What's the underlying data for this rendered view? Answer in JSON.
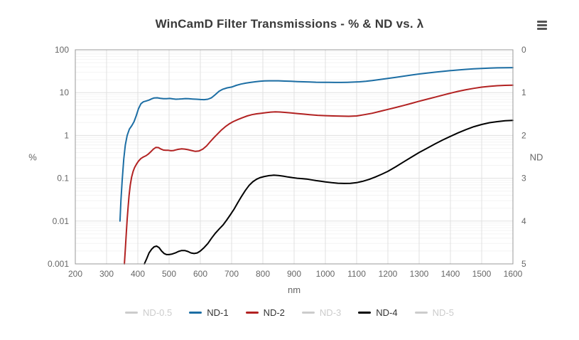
{
  "chart": {
    "title": "WinCamD Filter Transmissions - % & ND vs. λ",
    "menu_icon": "hamburger-menu"
  },
  "colors": {
    "background": "#ffffff",
    "title_text": "#3a3a3a",
    "axis_text": "#666666",
    "plot_border": "#999999",
    "grid_major": "#e0e0e0",
    "grid_minor": "#f4f4f4",
    "legend_enabled_text": "#333333",
    "legend_disabled": "#cccccc",
    "nd1_blue": "#1c6ea4",
    "nd2_red": "#b22222",
    "nd4_black": "#000000"
  },
  "axes": {
    "x": {
      "title": "nm",
      "min": 200,
      "max": 1600,
      "tick_values": [
        200,
        300,
        400,
        500,
        600,
        700,
        800,
        900,
        1000,
        1100,
        1200,
        1300,
        1400,
        1500,
        1600
      ]
    },
    "y_left": {
      "title": "%",
      "type": "log",
      "min": 0.001,
      "max": 100,
      "ticks": [
        {
          "v": 100,
          "label": "100"
        },
        {
          "v": 10,
          "label": "10"
        },
        {
          "v": 1,
          "label": "1"
        },
        {
          "v": 0.1,
          "label": "0.1"
        },
        {
          "v": 0.01,
          "label": "0.01"
        },
        {
          "v": 0.001,
          "label": "0.001"
        }
      ]
    },
    "y_right": {
      "title": "ND",
      "ticks": [
        0,
        1,
        2,
        3,
        4,
        5
      ]
    }
  },
  "chart_data": {
    "type": "line",
    "title": "WinCamD Filter Transmissions - % & ND vs. λ",
    "xlabel": "nm",
    "ylabel_left": "%",
    "ylabel_right": "ND",
    "x_range": [
      200,
      1600
    ],
    "y_range": [
      0.001,
      100
    ],
    "nd_range": [
      0,
      5
    ],
    "grid": true,
    "legend_position": "bottom",
    "series": [
      {
        "name": "ND-0.5",
        "color": "#cccccc",
        "visible": false,
        "points": []
      },
      {
        "name": "ND-1",
        "color": "#1c6ea4",
        "visible": true,
        "points": [
          [
            343,
            0.01
          ],
          [
            346,
            0.03
          ],
          [
            350,
            0.09
          ],
          [
            355,
            0.28
          ],
          [
            360,
            0.6
          ],
          [
            366,
            1.0
          ],
          [
            373,
            1.4
          ],
          [
            381,
            1.7
          ],
          [
            388,
            2.1
          ],
          [
            395,
            2.9
          ],
          [
            402,
            4.2
          ],
          [
            410,
            5.5
          ],
          [
            418,
            6.1
          ],
          [
            427,
            6.4
          ],
          [
            436,
            6.7
          ],
          [
            445,
            7.2
          ],
          [
            452,
            7.5
          ],
          [
            462,
            7.55
          ],
          [
            472,
            7.35
          ],
          [
            482,
            7.2
          ],
          [
            492,
            7.2
          ],
          [
            502,
            7.3
          ],
          [
            512,
            7.15
          ],
          [
            522,
            7.0
          ],
          [
            532,
            7.05
          ],
          [
            542,
            7.15
          ],
          [
            552,
            7.25
          ],
          [
            562,
            7.2
          ],
          [
            575,
            7.1
          ],
          [
            588,
            7.0
          ],
          [
            600,
            6.9
          ],
          [
            612,
            6.85
          ],
          [
            624,
            7.0
          ],
          [
            636,
            7.6
          ],
          [
            648,
            9.0
          ],
          [
            660,
            10.8
          ],
          [
            672,
            12.0
          ],
          [
            686,
            12.9
          ],
          [
            700,
            13.5
          ],
          [
            715,
            14.8
          ],
          [
            730,
            15.8
          ],
          [
            745,
            16.6
          ],
          [
            760,
            17.3
          ],
          [
            775,
            17.9
          ],
          [
            790,
            18.4
          ],
          [
            805,
            18.7
          ],
          [
            820,
            18.85
          ],
          [
            835,
            18.9
          ],
          [
            850,
            18.85
          ],
          [
            870,
            18.6
          ],
          [
            890,
            18.4
          ],
          [
            910,
            18.1
          ],
          [
            930,
            17.9
          ],
          [
            950,
            17.7
          ],
          [
            970,
            17.5
          ],
          [
            990,
            17.4
          ],
          [
            1010,
            17.35
          ],
          [
            1030,
            17.3
          ],
          [
            1050,
            17.3
          ],
          [
            1070,
            17.4
          ],
          [
            1090,
            17.6
          ],
          [
            1110,
            17.9
          ],
          [
            1130,
            18.4
          ],
          [
            1150,
            19.1
          ],
          [
            1175,
            20.2
          ],
          [
            1200,
            21.5
          ],
          [
            1225,
            22.8
          ],
          [
            1250,
            24.2
          ],
          [
            1275,
            25.7
          ],
          [
            1300,
            27.2
          ],
          [
            1325,
            28.6
          ],
          [
            1350,
            30.0
          ],
          [
            1375,
            31.3
          ],
          [
            1400,
            32.6
          ],
          [
            1425,
            33.8
          ],
          [
            1450,
            34.9
          ],
          [
            1475,
            35.9
          ],
          [
            1500,
            36.7
          ],
          [
            1525,
            37.3
          ],
          [
            1550,
            37.8
          ],
          [
            1575,
            38.1
          ],
          [
            1600,
            38.3
          ]
        ]
      },
      {
        "name": "ND-2",
        "color": "#b22222",
        "visible": true,
        "points": [
          [
            357,
            0.001
          ],
          [
            360,
            0.0022
          ],
          [
            363,
            0.005
          ],
          [
            366,
            0.011
          ],
          [
            369,
            0.022
          ],
          [
            372,
            0.04
          ],
          [
            376,
            0.07
          ],
          [
            380,
            0.105
          ],
          [
            385,
            0.145
          ],
          [
            390,
            0.18
          ],
          [
            396,
            0.215
          ],
          [
            402,
            0.25
          ],
          [
            410,
            0.29
          ],
          [
            418,
            0.315
          ],
          [
            426,
            0.335
          ],
          [
            434,
            0.37
          ],
          [
            442,
            0.42
          ],
          [
            450,
            0.48
          ],
          [
            458,
            0.525
          ],
          [
            466,
            0.52
          ],
          [
            474,
            0.48
          ],
          [
            482,
            0.455
          ],
          [
            490,
            0.45
          ],
          [
            498,
            0.45
          ],
          [
            506,
            0.44
          ],
          [
            514,
            0.445
          ],
          [
            522,
            0.46
          ],
          [
            530,
            0.475
          ],
          [
            540,
            0.485
          ],
          [
            550,
            0.48
          ],
          [
            560,
            0.465
          ],
          [
            572,
            0.445
          ],
          [
            584,
            0.425
          ],
          [
            596,
            0.435
          ],
          [
            608,
            0.48
          ],
          [
            620,
            0.57
          ],
          [
            632,
            0.72
          ],
          [
            644,
            0.9
          ],
          [
            656,
            1.1
          ],
          [
            668,
            1.35
          ],
          [
            680,
            1.6
          ],
          [
            692,
            1.85
          ],
          [
            705,
            2.1
          ],
          [
            720,
            2.35
          ],
          [
            735,
            2.6
          ],
          [
            750,
            2.85
          ],
          [
            765,
            3.05
          ],
          [
            780,
            3.2
          ],
          [
            795,
            3.3
          ],
          [
            810,
            3.4
          ],
          [
            825,
            3.5
          ],
          [
            840,
            3.55
          ],
          [
            855,
            3.52
          ],
          [
            870,
            3.45
          ],
          [
            890,
            3.35
          ],
          [
            910,
            3.25
          ],
          [
            930,
            3.15
          ],
          [
            950,
            3.05
          ],
          [
            975,
            2.95
          ],
          [
            1000,
            2.9
          ],
          [
            1025,
            2.85
          ],
          [
            1050,
            2.82
          ],
          [
            1075,
            2.8
          ],
          [
            1100,
            2.85
          ],
          [
            1125,
            3.05
          ],
          [
            1150,
            3.3
          ],
          [
            1175,
            3.65
          ],
          [
            1200,
            4.05
          ],
          [
            1225,
            4.5
          ],
          [
            1250,
            5.0
          ],
          [
            1275,
            5.6
          ],
          [
            1300,
            6.3
          ],
          [
            1325,
            7.0
          ],
          [
            1350,
            7.8
          ],
          [
            1375,
            8.7
          ],
          [
            1400,
            9.7
          ],
          [
            1425,
            10.7
          ],
          [
            1450,
            11.7
          ],
          [
            1475,
            12.6
          ],
          [
            1500,
            13.4
          ],
          [
            1525,
            14.0
          ],
          [
            1550,
            14.5
          ],
          [
            1575,
            14.8
          ],
          [
            1600,
            14.9
          ]
        ]
      },
      {
        "name": "ND-3",
        "color": "#cccccc",
        "visible": false,
        "points": []
      },
      {
        "name": "ND-4",
        "color": "#000000",
        "visible": true,
        "points": [
          [
            421,
            0.001
          ],
          [
            428,
            0.0013
          ],
          [
            436,
            0.0018
          ],
          [
            444,
            0.0022
          ],
          [
            452,
            0.0025
          ],
          [
            460,
            0.0026
          ],
          [
            468,
            0.0024
          ],
          [
            476,
            0.002
          ],
          [
            484,
            0.00175
          ],
          [
            492,
            0.00165
          ],
          [
            500,
            0.00165
          ],
          [
            510,
            0.0017
          ],
          [
            520,
            0.0018
          ],
          [
            530,
            0.00195
          ],
          [
            540,
            0.00205
          ],
          [
            550,
            0.00205
          ],
          [
            560,
            0.00195
          ],
          [
            570,
            0.0018
          ],
          [
            580,
            0.00175
          ],
          [
            590,
            0.0018
          ],
          [
            600,
            0.002
          ],
          [
            612,
            0.0024
          ],
          [
            624,
            0.003
          ],
          [
            636,
            0.004
          ],
          [
            648,
            0.0052
          ],
          [
            660,
            0.0065
          ],
          [
            672,
            0.008
          ],
          [
            684,
            0.0105
          ],
          [
            696,
            0.014
          ],
          [
            708,
            0.019
          ],
          [
            720,
            0.027
          ],
          [
            732,
            0.038
          ],
          [
            744,
            0.052
          ],
          [
            756,
            0.068
          ],
          [
            768,
            0.083
          ],
          [
            780,
            0.095
          ],
          [
            792,
            0.104
          ],
          [
            805,
            0.11
          ],
          [
            820,
            0.115
          ],
          [
            835,
            0.118
          ],
          [
            850,
            0.116
          ],
          [
            865,
            0.112
          ],
          [
            880,
            0.107
          ],
          [
            895,
            0.103
          ],
          [
            910,
            0.1
          ],
          [
            925,
            0.098
          ],
          [
            940,
            0.096
          ],
          [
            955,
            0.092
          ],
          [
            970,
            0.088
          ],
          [
            985,
            0.085
          ],
          [
            1000,
            0.082
          ],
          [
            1020,
            0.079
          ],
          [
            1040,
            0.0765
          ],
          [
            1060,
            0.0755
          ],
          [
            1080,
            0.076
          ],
          [
            1100,
            0.079
          ],
          [
            1120,
            0.085
          ],
          [
            1140,
            0.094
          ],
          [
            1160,
            0.107
          ],
          [
            1180,
            0.124
          ],
          [
            1200,
            0.145
          ],
          [
            1225,
            0.185
          ],
          [
            1250,
            0.24
          ],
          [
            1275,
            0.31
          ],
          [
            1300,
            0.4
          ],
          [
            1325,
            0.5
          ],
          [
            1350,
            0.63
          ],
          [
            1375,
            0.78
          ],
          [
            1400,
            0.95
          ],
          [
            1425,
            1.15
          ],
          [
            1450,
            1.37
          ],
          [
            1475,
            1.6
          ],
          [
            1500,
            1.8
          ],
          [
            1525,
            1.98
          ],
          [
            1550,
            2.1
          ],
          [
            1575,
            2.2
          ],
          [
            1600,
            2.25
          ]
        ]
      },
      {
        "name": "ND-5",
        "color": "#cccccc",
        "visible": false,
        "points": []
      }
    ]
  }
}
